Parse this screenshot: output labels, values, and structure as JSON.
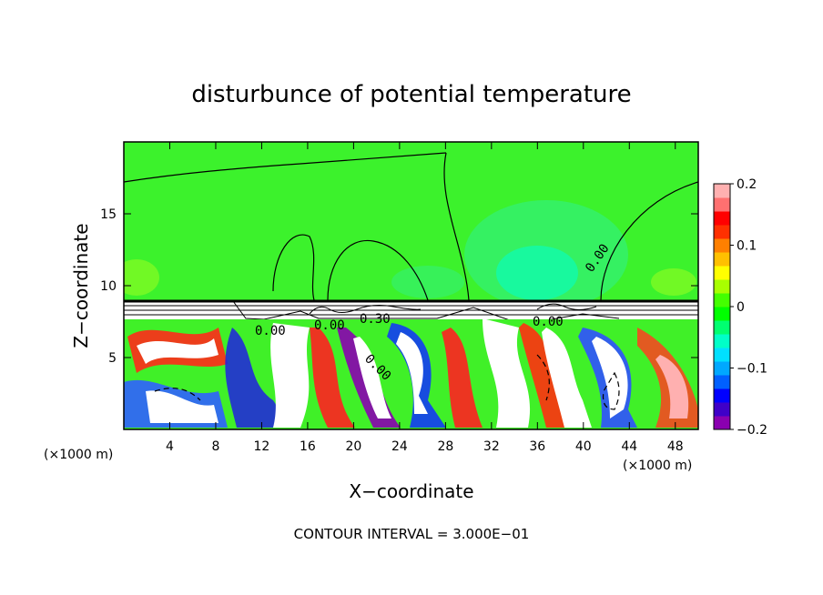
{
  "chart_data": {
    "type": "heatmap",
    "title": "disturbunce of potential temperature",
    "xlabel": "X−coordinate",
    "ylabel": "Z−coordinate",
    "x_unit": "(×1000 m)",
    "x_unit_right": "(×1000 m)",
    "xlim": [
      0,
      50
    ],
    "ylim": [
      0,
      20
    ],
    "x_ticks": [
      4,
      8,
      12,
      16,
      20,
      24,
      28,
      32,
      36,
      40,
      44,
      48
    ],
    "y_ticks": [
      5,
      10,
      15
    ],
    "colorbar": {
      "range": [
        -0.2,
        0.2
      ],
      "tick_values": [
        0.2,
        0.1,
        0,
        -0.1,
        -0.2
      ],
      "tick_labels": [
        "0.2",
        "0.1",
        "0",
        "−0.1",
        "−0.2"
      ],
      "colors": [
        "#8a00b0",
        "#3f00c8",
        "#0000ff",
        "#0060ff",
        "#00a8ff",
        "#00e0ff",
        "#00ffc8",
        "#00ff70",
        "#00ff00",
        "#44ff00",
        "#a8ff00",
        "#ffff00",
        "#ffc000",
        "#ff8000",
        "#ff3000",
        "#ff0000",
        "#ff7070",
        "#ffb0b0"
      ]
    },
    "contour_labels": [
      "0.00",
      "0.00",
      "0.30",
      "0.00",
      "0.00",
      "0.00"
    ],
    "footer": "CONTOUR INTERVAL = 3.000E−01"
  }
}
